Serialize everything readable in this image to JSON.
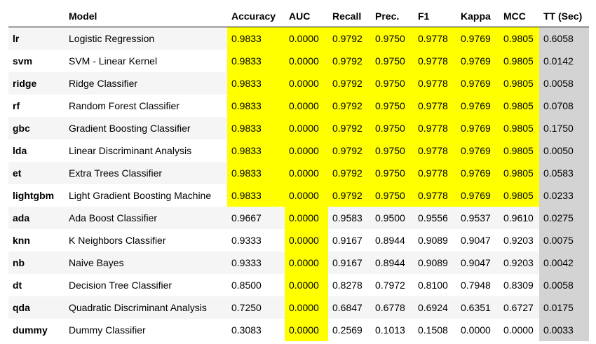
{
  "table": {
    "headers": [
      "",
      "Model",
      "Accuracy",
      "AUC",
      "Recall",
      "Prec.",
      "F1",
      "Kappa",
      "MCC",
      "TT (Sec)"
    ],
    "rows": [
      {
        "idx": "lr",
        "model": "Logistic Regression",
        "acc": "0.9833",
        "auc": "0.0000",
        "recall": "0.9792",
        "prec": "0.9750",
        "f1": "0.9778",
        "kappa": "0.9769",
        "mcc": "0.9805",
        "tt": "0.6058",
        "hl": [
          "acc",
          "auc",
          "recall",
          "prec",
          "f1",
          "kappa",
          "mcc"
        ]
      },
      {
        "idx": "svm",
        "model": "SVM - Linear Kernel",
        "acc": "0.9833",
        "auc": "0.0000",
        "recall": "0.9792",
        "prec": "0.9750",
        "f1": "0.9778",
        "kappa": "0.9769",
        "mcc": "0.9805",
        "tt": "0.0142",
        "hl": [
          "acc",
          "auc",
          "recall",
          "prec",
          "f1",
          "kappa",
          "mcc"
        ]
      },
      {
        "idx": "ridge",
        "model": "Ridge Classifier",
        "acc": "0.9833",
        "auc": "0.0000",
        "recall": "0.9792",
        "prec": "0.9750",
        "f1": "0.9778",
        "kappa": "0.9769",
        "mcc": "0.9805",
        "tt": "0.0058",
        "hl": [
          "acc",
          "auc",
          "recall",
          "prec",
          "f1",
          "kappa",
          "mcc"
        ]
      },
      {
        "idx": "rf",
        "model": "Random Forest Classifier",
        "acc": "0.9833",
        "auc": "0.0000",
        "recall": "0.9792",
        "prec": "0.9750",
        "f1": "0.9778",
        "kappa": "0.9769",
        "mcc": "0.9805",
        "tt": "0.0708",
        "hl": [
          "acc",
          "auc",
          "recall",
          "prec",
          "f1",
          "kappa",
          "mcc"
        ]
      },
      {
        "idx": "gbc",
        "model": "Gradient Boosting Classifier",
        "acc": "0.9833",
        "auc": "0.0000",
        "recall": "0.9792",
        "prec": "0.9750",
        "f1": "0.9778",
        "kappa": "0.9769",
        "mcc": "0.9805",
        "tt": "0.1750",
        "hl": [
          "acc",
          "auc",
          "recall",
          "prec",
          "f1",
          "kappa",
          "mcc"
        ]
      },
      {
        "idx": "lda",
        "model": "Linear Discriminant Analysis",
        "acc": "0.9833",
        "auc": "0.0000",
        "recall": "0.9792",
        "prec": "0.9750",
        "f1": "0.9778",
        "kappa": "0.9769",
        "mcc": "0.9805",
        "tt": "0.0050",
        "hl": [
          "acc",
          "auc",
          "recall",
          "prec",
          "f1",
          "kappa",
          "mcc"
        ]
      },
      {
        "idx": "et",
        "model": "Extra Trees Classifier",
        "acc": "0.9833",
        "auc": "0.0000",
        "recall": "0.9792",
        "prec": "0.9750",
        "f1": "0.9778",
        "kappa": "0.9769",
        "mcc": "0.9805",
        "tt": "0.0583",
        "hl": [
          "acc",
          "auc",
          "recall",
          "prec",
          "f1",
          "kappa",
          "mcc"
        ]
      },
      {
        "idx": "lightgbm",
        "model": "Light Gradient Boosting Machine",
        "acc": "0.9833",
        "auc": "0.0000",
        "recall": "0.9792",
        "prec": "0.9750",
        "f1": "0.9778",
        "kappa": "0.9769",
        "mcc": "0.9805",
        "tt": "0.0233",
        "hl": [
          "acc",
          "auc",
          "recall",
          "prec",
          "f1",
          "kappa",
          "mcc"
        ]
      },
      {
        "idx": "ada",
        "model": "Ada Boost Classifier",
        "acc": "0.9667",
        "auc": "0.0000",
        "recall": "0.9583",
        "prec": "0.9500",
        "f1": "0.9556",
        "kappa": "0.9537",
        "mcc": "0.9610",
        "tt": "0.0275",
        "hl": [
          "auc"
        ]
      },
      {
        "idx": "knn",
        "model": "K Neighbors Classifier",
        "acc": "0.9333",
        "auc": "0.0000",
        "recall": "0.9167",
        "prec": "0.8944",
        "f1": "0.9089",
        "kappa": "0.9047",
        "mcc": "0.9203",
        "tt": "0.0075",
        "hl": [
          "auc"
        ]
      },
      {
        "idx": "nb",
        "model": "Naive Bayes",
        "acc": "0.9333",
        "auc": "0.0000",
        "recall": "0.9167",
        "prec": "0.8944",
        "f1": "0.9089",
        "kappa": "0.9047",
        "mcc": "0.9203",
        "tt": "0.0042",
        "hl": [
          "auc"
        ]
      },
      {
        "idx": "dt",
        "model": "Decision Tree Classifier",
        "acc": "0.8500",
        "auc": "0.0000",
        "recall": "0.8278",
        "prec": "0.7972",
        "f1": "0.8100",
        "kappa": "0.7948",
        "mcc": "0.8309",
        "tt": "0.0058",
        "hl": [
          "auc"
        ]
      },
      {
        "idx": "qda",
        "model": "Quadratic Discriminant Analysis",
        "acc": "0.7250",
        "auc": "0.0000",
        "recall": "0.6847",
        "prec": "0.6778",
        "f1": "0.6924",
        "kappa": "0.6351",
        "mcc": "0.6727",
        "tt": "0.0175",
        "hl": [
          "auc"
        ]
      },
      {
        "idx": "dummy",
        "model": "Dummy Classifier",
        "acc": "0.3083",
        "auc": "0.0000",
        "recall": "0.2569",
        "prec": "0.1013",
        "f1": "0.1508",
        "kappa": "0.0000",
        "mcc": "0.0000",
        "tt": "0.0033",
        "hl": [
          "auc"
        ]
      }
    ]
  },
  "colors": {
    "best_highlight": "#ffff00",
    "tt_highlight": "#d3d3d3",
    "stripe": "#f5f5f5"
  }
}
